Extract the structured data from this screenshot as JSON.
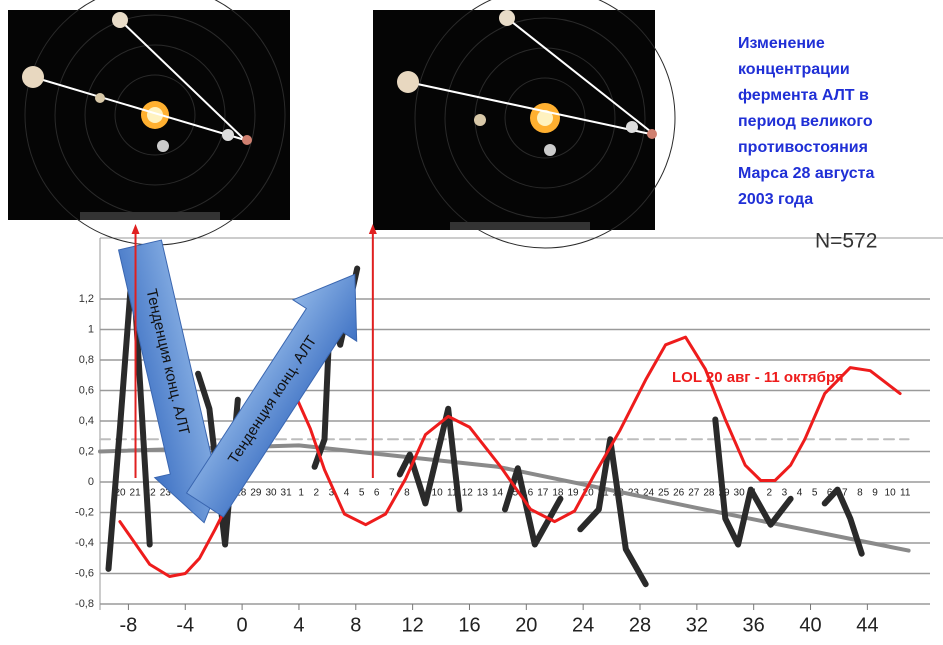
{
  "chart_data": {
    "type": "line",
    "title_lines": [
      "Изменение",
      "концентрации",
      "фермента АЛТ  в",
      "период великого",
      "противостояния",
      "Марса 28 августа",
      "2003 года"
    ],
    "n_label": "N=572",
    "lol_label": "LOL 20 авг - 11 октября",
    "arrow_labels": [
      "Тенденция конц. АЛТ",
      "Тенденция конц. АЛТ"
    ],
    "xlim": [
      -10,
      47
    ],
    "ylim": [
      -0.8,
      1.6
    ],
    "xticks": [
      -8,
      -4,
      0,
      4,
      8,
      12,
      16,
      20,
      24,
      28,
      32,
      36,
      40,
      44
    ],
    "yticks": [
      {
        "value": -0.8,
        "label": "-0,8"
      },
      {
        "value": -0.6,
        "label": "-0,6"
      },
      {
        "value": -0.4,
        "label": "-0,4"
      },
      {
        "value": -0.2,
        "label": "-0,2"
      },
      0,
      {
        "value": 0.2,
        "label": "0,2"
      },
      {
        "value": 0.4,
        "label": "0,4"
      },
      {
        "value": 0.6,
        "label": "0,6"
      },
      {
        "value": 0.8,
        "label": "0,8"
      },
      1,
      {
        "value": 1.2,
        "label": "1,2"
      }
    ],
    "grid": true,
    "date_labels": [
      "20",
      "21",
      "22",
      "23",
      "24",
      null,
      null,
      null,
      "28",
      "29",
      "30",
      "31",
      "1",
      "2",
      "3",
      "4",
      "5",
      "6",
      "7",
      "8",
      "9",
      "10",
      "11",
      "12",
      "13",
      "14",
      "15",
      "16",
      "17",
      "18",
      "19",
      "20",
      "21",
      "22",
      "23",
      "24",
      "25",
      "26",
      "27",
      "28",
      "29",
      "30",
      "1",
      "2",
      "3",
      "4",
      "5",
      "6",
      "7",
      "8",
      "9",
      "10",
      "11"
    ],
    "vlines": [
      -7.5,
      9.2
    ],
    "vline_color": "#e02020",
    "series": [
      {
        "color": "#bdbdbd",
        "width": 2,
        "dashed": true,
        "x": [
          -10,
          46.9
        ],
        "values": [
          0.28,
          0.28
        ]
      },
      {
        "color": "#8a8a8a",
        "width": 4,
        "dashed": false,
        "x": [
          -10,
          4,
          18,
          32,
          46.9
        ],
        "values": [
          0.2,
          0.24,
          0.1,
          -0.17,
          -0.45
        ]
      },
      {
        "color": "#2a2a2a",
        "width": 6,
        "dashed": false,
        "x": [
          -9.4,
          -8.6,
          -7.7,
          -6.5,
          null,
          -3.1,
          -2.3,
          -1.2,
          -0.3,
          null,
          5.1,
          5.8,
          6.2,
          6.9,
          8.1,
          null,
          11.1,
          11.8,
          12.9,
          14.5,
          15.3,
          null,
          18.5,
          19.4,
          20.6,
          22.4,
          null,
          23.8,
          25.1,
          25.9,
          27.0,
          28.4,
          null,
          33.3,
          34.0,
          34.9,
          35.8,
          37.2,
          38.6,
          null,
          41.0,
          41.9,
          42.8,
          43.6
        ],
        "values": [
          -0.57,
          0.35,
          1.45,
          -0.41,
          null,
          0.71,
          0.48,
          -0.41,
          0.54,
          null,
          0.1,
          0.28,
          1.13,
          0.9,
          1.4,
          null,
          0.05,
          0.18,
          -0.14,
          0.48,
          -0.18,
          null,
          -0.18,
          0.09,
          -0.41,
          -0.11,
          null,
          -0.31,
          -0.18,
          0.28,
          -0.44,
          -0.67,
          null,
          0.41,
          -0.24,
          -0.41,
          -0.05,
          -0.28,
          -0.11,
          null,
          -0.14,
          -0.05,
          -0.24,
          -0.47
        ]
      },
      {
        "color": "#ee1c1c",
        "width": 3,
        "dashed": false,
        "x": [
          -8.6,
          -6.5,
          -5.1,
          -4.0,
          -3.0,
          -1.9,
          -0.5,
          0.9,
          1.6,
          2.7,
          3.7,
          4.8,
          5.8,
          7.2,
          8.7,
          10.1,
          11.5,
          12.9,
          14.5,
          16.0,
          18.2,
          20.3,
          22.0,
          23.4,
          24.8,
          26.6,
          28.4,
          29.8,
          31.2,
          32.6,
          34.0,
          35.4,
          36.5,
          37.5,
          38.6,
          39.6,
          41.0,
          42.8,
          44.2,
          46.3
        ],
        "values": [
          -0.26,
          -0.54,
          -0.62,
          -0.6,
          -0.5,
          -0.31,
          -0.05,
          0.35,
          0.68,
          0.74,
          0.58,
          0.35,
          0.08,
          -0.21,
          -0.28,
          -0.21,
          0.02,
          0.31,
          0.43,
          0.36,
          0.1,
          -0.18,
          -0.26,
          -0.19,
          0.05,
          0.34,
          0.67,
          0.9,
          0.95,
          0.74,
          0.41,
          0.11,
          0.01,
          0.01,
          0.11,
          0.28,
          0.58,
          0.75,
          0.73,
          0.58
        ]
      }
    ]
  }
}
